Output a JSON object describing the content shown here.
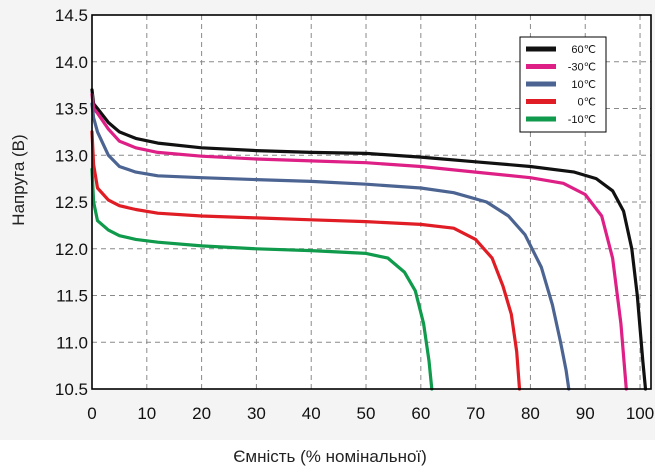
{
  "chart_data": {
    "type": "line",
    "xlabel": "Ємність (% номінальної)",
    "ylabel": "Напруга (В)",
    "xlim": [
      0,
      102
    ],
    "ylim": [
      10.5,
      14.5
    ],
    "x_ticks": [
      "0",
      "10",
      "20",
      "30",
      "40",
      "50",
      "60",
      "70",
      "80",
      "90",
      "100"
    ],
    "y_ticks": [
      "14.5",
      "14.0",
      "13.5",
      "13.0",
      "12.5",
      "12.0",
      "11.5",
      "11.0",
      "10.5"
    ],
    "grid": true,
    "legend_position": "top-right",
    "series": [
      {
        "name": "60℃",
        "color": "#111111",
        "points": [
          [
            0,
            13.7
          ],
          [
            0.3,
            13.55
          ],
          [
            1,
            13.5
          ],
          [
            3,
            13.35
          ],
          [
            5,
            13.25
          ],
          [
            8,
            13.18
          ],
          [
            12,
            13.13
          ],
          [
            20,
            13.08
          ],
          [
            30,
            13.05
          ],
          [
            40,
            13.03
          ],
          [
            50,
            13.02
          ],
          [
            60,
            12.98
          ],
          [
            70,
            12.93
          ],
          [
            80,
            12.88
          ],
          [
            88,
            12.82
          ],
          [
            92,
            12.75
          ],
          [
            95,
            12.62
          ],
          [
            97,
            12.4
          ],
          [
            98.5,
            12.0
          ],
          [
            99.5,
            11.5
          ],
          [
            100.5,
            10.8
          ],
          [
            101,
            10.5
          ]
        ]
      },
      {
        "name": "-30℃",
        "color": "#dd1f86",
        "points": [
          [
            0,
            13.65
          ],
          [
            0.3,
            13.5
          ],
          [
            1,
            13.45
          ],
          [
            3,
            13.28
          ],
          [
            5,
            13.15
          ],
          [
            8,
            13.08
          ],
          [
            12,
            13.03
          ],
          [
            20,
            12.99
          ],
          [
            30,
            12.96
          ],
          [
            40,
            12.94
          ],
          [
            50,
            12.92
          ],
          [
            60,
            12.88
          ],
          [
            70,
            12.82
          ],
          [
            80,
            12.76
          ],
          [
            86,
            12.7
          ],
          [
            90,
            12.58
          ],
          [
            93,
            12.35
          ],
          [
            95,
            11.9
          ],
          [
            96.5,
            11.2
          ],
          [
            97.5,
            10.5
          ]
        ]
      },
      {
        "name": "10℃",
        "color": "#4c6492",
        "points": [
          [
            0,
            13.55
          ],
          [
            0.3,
            13.4
          ],
          [
            1,
            13.25
          ],
          [
            3,
            13.0
          ],
          [
            5,
            12.88
          ],
          [
            8,
            12.82
          ],
          [
            12,
            12.78
          ],
          [
            20,
            12.76
          ],
          [
            30,
            12.74
          ],
          [
            40,
            12.72
          ],
          [
            50,
            12.69
          ],
          [
            60,
            12.65
          ],
          [
            66,
            12.6
          ],
          [
            72,
            12.5
          ],
          [
            76,
            12.35
          ],
          [
            79,
            12.15
          ],
          [
            82,
            11.8
          ],
          [
            84,
            11.4
          ],
          [
            85.5,
            11.0
          ],
          [
            86.5,
            10.7
          ],
          [
            87,
            10.5
          ]
        ]
      },
      {
        "name": "0℃",
        "color": "#e01c24",
        "points": [
          [
            0,
            13.25
          ],
          [
            0.3,
            12.9
          ],
          [
            1,
            12.65
          ],
          [
            3,
            12.52
          ],
          [
            5,
            12.46
          ],
          [
            8,
            12.42
          ],
          [
            12,
            12.38
          ],
          [
            20,
            12.35
          ],
          [
            30,
            12.33
          ],
          [
            40,
            12.31
          ],
          [
            50,
            12.29
          ],
          [
            60,
            12.26
          ],
          [
            66,
            12.22
          ],
          [
            70,
            12.1
          ],
          [
            73,
            11.9
          ],
          [
            75,
            11.6
          ],
          [
            76.5,
            11.3
          ],
          [
            77.5,
            10.9
          ],
          [
            78,
            10.5
          ]
        ]
      },
      {
        "name": "-10℃",
        "color": "#0f9a4c",
        "points": [
          [
            0,
            12.85
          ],
          [
            0.3,
            12.5
          ],
          [
            1,
            12.3
          ],
          [
            3,
            12.2
          ],
          [
            5,
            12.14
          ],
          [
            8,
            12.1
          ],
          [
            12,
            12.07
          ],
          [
            20,
            12.03
          ],
          [
            30,
            12.0
          ],
          [
            40,
            11.98
          ],
          [
            50,
            11.95
          ],
          [
            54,
            11.9
          ],
          [
            57,
            11.75
          ],
          [
            59,
            11.55
          ],
          [
            60.5,
            11.2
          ],
          [
            61.5,
            10.8
          ],
          [
            62,
            10.5
          ]
        ]
      }
    ]
  }
}
